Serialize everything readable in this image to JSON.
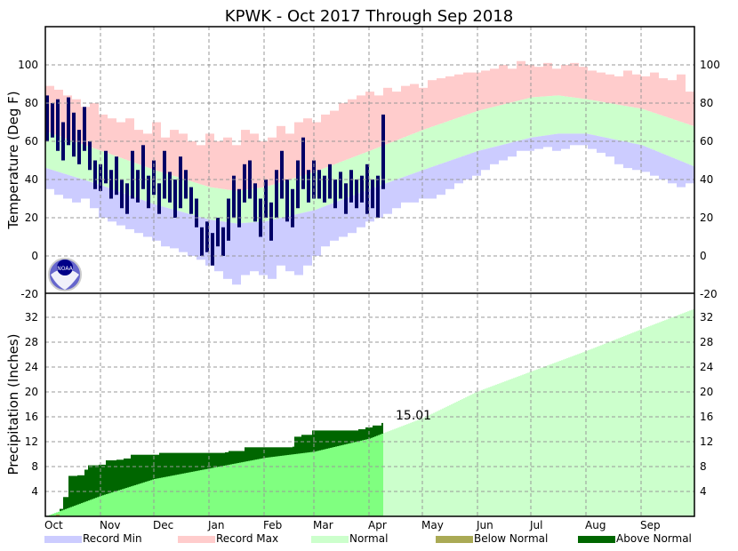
{
  "chart_data": [
    {
      "type": "bar",
      "title": "KPWK - Oct 2017 Through Sep 2018",
      "ylabel": "Temperature (Deg F)",
      "ylim": [
        -20,
        120
      ],
      "yticks": [
        -20,
        0,
        20,
        40,
        60,
        80,
        100
      ],
      "months": [
        "Oct",
        "Nov",
        "Dec",
        "Jan",
        "Feb",
        "Mar",
        "Apr",
        "May",
        "Jun",
        "Jul",
        "Aug",
        "Sep"
      ],
      "month_start_days": [
        0,
        31,
        61,
        92,
        123,
        151,
        182,
        212,
        243,
        273,
        304,
        335
      ],
      "normal_keypoints_day_high_low": [
        [
          0,
          65,
          46
        ],
        [
          31,
          55,
          37
        ],
        [
          61,
          45,
          27
        ],
        [
          92,
          36,
          19
        ],
        [
          107,
          34,
          17
        ],
        [
          123,
          36,
          18
        ],
        [
          151,
          44,
          24
        ],
        [
          182,
          55,
          35
        ],
        [
          212,
          66,
          45
        ],
        [
          243,
          76,
          55
        ],
        [
          273,
          83,
          62
        ],
        [
          288,
          84,
          64
        ],
        [
          304,
          82,
          64
        ],
        [
          335,
          77,
          58
        ],
        [
          364,
          68,
          47
        ]
      ],
      "record_step_days": 5,
      "record_max": [
        89,
        87,
        84,
        82,
        78,
        80,
        74,
        72,
        70,
        72,
        66,
        64,
        70,
        62,
        66,
        64,
        60,
        58,
        64,
        60,
        62,
        58,
        66,
        64,
        60,
        62,
        68,
        64,
        70,
        72,
        70,
        74,
        76,
        80,
        82,
        84,
        86,
        84,
        88,
        86,
        89,
        90,
        88,
        92,
        93,
        94,
        95,
        96,
        96,
        97,
        98,
        100,
        98,
        102,
        100,
        99,
        101,
        98,
        100,
        101,
        99,
        97,
        96,
        95,
        94,
        97,
        95,
        94,
        96,
        93,
        92,
        95,
        86
      ],
      "record_min": [
        35,
        32,
        30,
        28,
        30,
        25,
        20,
        18,
        16,
        14,
        12,
        10,
        8,
        5,
        4,
        2,
        0,
        -2,
        -5,
        -8,
        -12,
        -15,
        -10,
        -8,
        -10,
        -12,
        -5,
        -8,
        -10,
        -5,
        0,
        5,
        8,
        10,
        12,
        15,
        18,
        20,
        22,
        25,
        28,
        28,
        30,
        30,
        32,
        35,
        38,
        40,
        42,
        45,
        48,
        50,
        52,
        55,
        55,
        56,
        57,
        55,
        56,
        58,
        58,
        56,
        54,
        52,
        48,
        46,
        45,
        44,
        42,
        40,
        38,
        36,
        38
      ],
      "observed_step_days": 3,
      "observed_high_low": [
        [
          84,
          60
        ],
        [
          80,
          62
        ],
        [
          82,
          55
        ],
        [
          70,
          50
        ],
        [
          83,
          58
        ],
        [
          75,
          52
        ],
        [
          66,
          48
        ],
        [
          78,
          55
        ],
        [
          60,
          45
        ],
        [
          50,
          35
        ],
        [
          48,
          34
        ],
        [
          55,
          38
        ],
        [
          45,
          30
        ],
        [
          52,
          32
        ],
        [
          40,
          25
        ],
        [
          38,
          22
        ],
        [
          55,
          30
        ],
        [
          45,
          28
        ],
        [
          58,
          35
        ],
        [
          42,
          25
        ],
        [
          50,
          32
        ],
        [
          38,
          22
        ],
        [
          55,
          30
        ],
        [
          44,
          28
        ],
        [
          40,
          20
        ],
        [
          52,
          25
        ],
        [
          45,
          30
        ],
        [
          36,
          22
        ],
        [
          30,
          15
        ],
        [
          15,
          0
        ],
        [
          18,
          2
        ],
        [
          12,
          -5
        ],
        [
          20,
          5
        ],
        [
          15,
          0
        ],
        [
          30,
          8
        ],
        [
          42,
          20
        ],
        [
          35,
          15
        ],
        [
          48,
          28
        ],
        [
          50,
          30
        ],
        [
          38,
          18
        ],
        [
          30,
          10
        ],
        [
          40,
          20
        ],
        [
          28,
          8
        ],
        [
          45,
          20
        ],
        [
          55,
          30
        ],
        [
          40,
          18
        ],
        [
          35,
          15
        ],
        [
          50,
          25
        ],
        [
          62,
          35
        ],
        [
          45,
          28
        ],
        [
          50,
          30
        ],
        [
          45,
          30
        ],
        [
          42,
          28
        ],
        [
          48,
          30
        ],
        [
          40,
          25
        ],
        [
          44,
          30
        ],
        [
          38,
          22
        ],
        [
          45,
          28
        ],
        [
          40,
          25
        ],
        [
          42,
          28
        ],
        [
          48,
          22
        ],
        [
          40,
          25
        ],
        [
          42,
          20
        ],
        [
          74,
          35
        ]
      ]
    },
    {
      "type": "area",
      "ylabel": "Precipitation (Inches)",
      "ylim": [
        0,
        36
      ],
      "yticks": [
        4,
        8,
        12,
        16,
        20,
        24,
        28,
        32
      ],
      "normal_cumulative_day_value": [
        [
          0,
          0
        ],
        [
          31,
          3.3
        ],
        [
          61,
          6.0
        ],
        [
          92,
          7.7
        ],
        [
          123,
          9.4
        ],
        [
          151,
          10.4
        ],
        [
          182,
          12.5
        ],
        [
          190,
          13.4
        ],
        [
          212,
          15.8
        ],
        [
          243,
          20.1
        ],
        [
          273,
          23.3
        ],
        [
          304,
          26.6
        ],
        [
          335,
          30.1
        ],
        [
          364,
          33.3
        ]
      ],
      "observed_cumulative_day_value": [
        [
          0,
          0
        ],
        [
          3,
          0.1
        ],
        [
          6,
          0.3
        ],
        [
          8,
          1.2
        ],
        [
          10,
          3.1
        ],
        [
          13,
          6.5
        ],
        [
          18,
          6.6
        ],
        [
          22,
          7.5
        ],
        [
          24,
          8.2
        ],
        [
          30,
          8.3
        ],
        [
          34,
          9.0
        ],
        [
          40,
          9.1
        ],
        [
          44,
          9.3
        ],
        [
          48,
          9.9
        ],
        [
          64,
          10.2
        ],
        [
          101,
          10.3
        ],
        [
          103,
          10.5
        ],
        [
          112,
          11.1
        ],
        [
          139,
          11.2
        ],
        [
          140,
          12.8
        ],
        [
          144,
          13.1
        ],
        [
          150,
          13.8
        ],
        [
          176,
          14.0
        ],
        [
          180,
          14.3
        ],
        [
          184,
          14.6
        ],
        [
          189,
          15.01
        ]
      ],
      "last_observed_day": 189,
      "total_label": "15.01"
    }
  ],
  "legend": [
    {
      "label": "Record Min",
      "color": "#ccccff"
    },
    {
      "label": "Record Max",
      "color": "#ffcccc"
    },
    {
      "label": "Normal",
      "color": "#ccffcc"
    },
    {
      "label": "Below Normal",
      "color": "#aaaa55"
    },
    {
      "label": "Above Normal",
      "color": "#006600"
    }
  ],
  "colors": {
    "observed": "#000066",
    "precip_normal_past": "#80ff80",
    "precip_normal_future": "#ccffcc"
  },
  "logo_text": "NOAA"
}
